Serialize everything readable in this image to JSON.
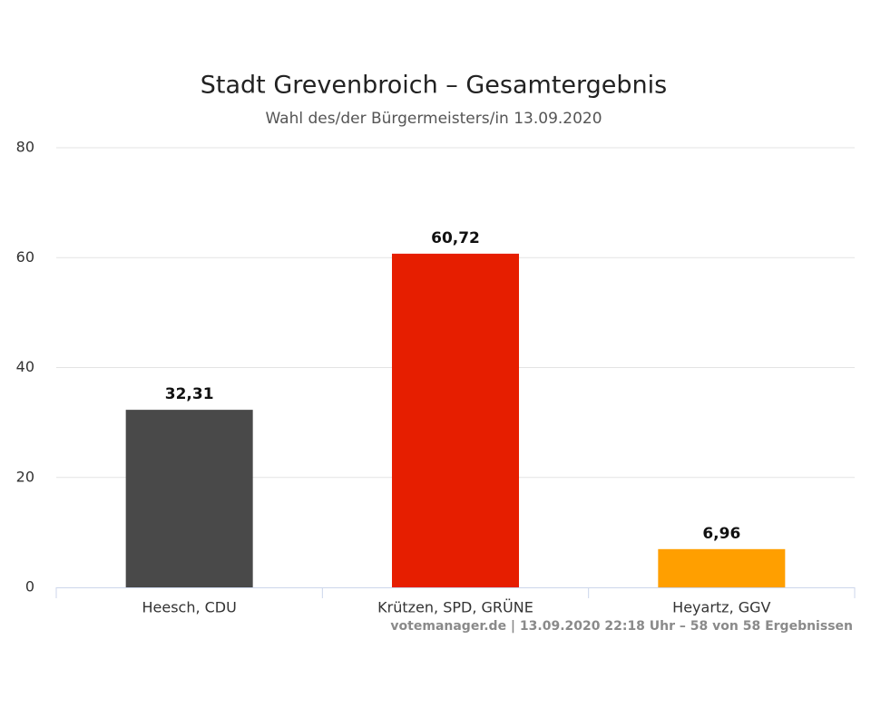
{
  "chart_data": {
    "type": "bar",
    "title": "Stadt Grevenbroich – Gesamtergebnis",
    "subtitle": "Wahl des/der Bürgermeisters/in 13.09.2020",
    "categories": [
      "Heesch, CDU",
      "Krützen, SPD, GRÜNE",
      "Heyartz, GGV"
    ],
    "values": [
      32.31,
      60.72,
      6.96
    ],
    "value_labels": [
      "32,31",
      "60,72",
      "6,96"
    ],
    "colors": [
      "#494949",
      "#e61e00",
      "#ff9f00"
    ],
    "ylim": [
      0,
      80
    ],
    "yticks": [
      0,
      20,
      40,
      60,
      80
    ],
    "grid": true,
    "credits": "votemanager.de | 13.09.2020 22:18 Uhr – 58 von 58 Ergebnissen"
  }
}
